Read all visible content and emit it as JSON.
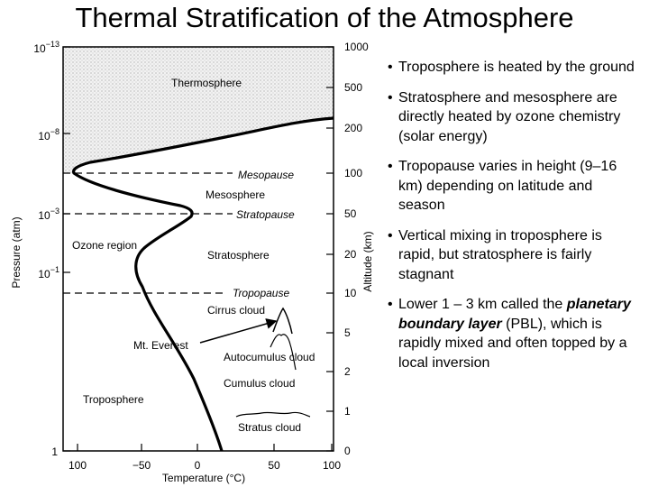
{
  "title": "Thermal Stratification of the Atmosphere",
  "diagram": {
    "pressure_axis": {
      "label": "Pressure (atm)",
      "ticks": [
        {
          "base": "10",
          "exp": "−13"
        },
        {
          "base": "10",
          "exp": "−8"
        },
        {
          "base": "10",
          "exp": "−3"
        },
        {
          "base": "10",
          "exp": "−1"
        },
        {
          "base": "1",
          "exp": ""
        }
      ]
    },
    "altitude_axis": {
      "label": "Altitude (km)",
      "ticks": [
        "1000",
        "500",
        "200",
        "100",
        "50",
        "20",
        "10",
        "5",
        "2",
        "1",
        "0"
      ]
    },
    "temperature_axis": {
      "label": "Temperature (°C)",
      "ticks": [
        "100",
        "−50",
        "0",
        "50",
        "100"
      ]
    },
    "labels": {
      "thermosphere": "Thermosphere",
      "mesopause": "Mesopause",
      "mesosphere": "Mesosphere",
      "stratopause": "Stratopause",
      "ozone_region": "Ozone region",
      "stratosphere": "Stratosphere",
      "tropopause": "Tropopause",
      "cirrus_cloud": "Cirrus cloud",
      "mt_everest": "Mt. Everest",
      "autocumulus_cloud": "Autocumulus cloud",
      "cumulus_cloud": "Cumulus cloud",
      "troposphere": "Troposphere",
      "stratus_cloud": "Stratus cloud"
    }
  },
  "bullets": [
    {
      "pre": "Troposphere is heated by the ground",
      "emph": "",
      "post": ""
    },
    {
      "pre": "Stratosphere and mesosphere are directly heated by ozone chemistry (solar energy)",
      "emph": "",
      "post": ""
    },
    {
      "pre": "Tropopause varies in height (9–16 km) depending on latitude and season",
      "emph": "",
      "post": ""
    },
    {
      "pre": "Vertical mixing in troposphere is rapid, but stratosphere is fairly stagnant",
      "emph": "",
      "post": ""
    },
    {
      "pre": "Lower 1 – 3 km called the ",
      "emph": "planetary boundary layer",
      "post": " (PBL), which is rapidly mixed and often topped by a local inversion"
    }
  ]
}
